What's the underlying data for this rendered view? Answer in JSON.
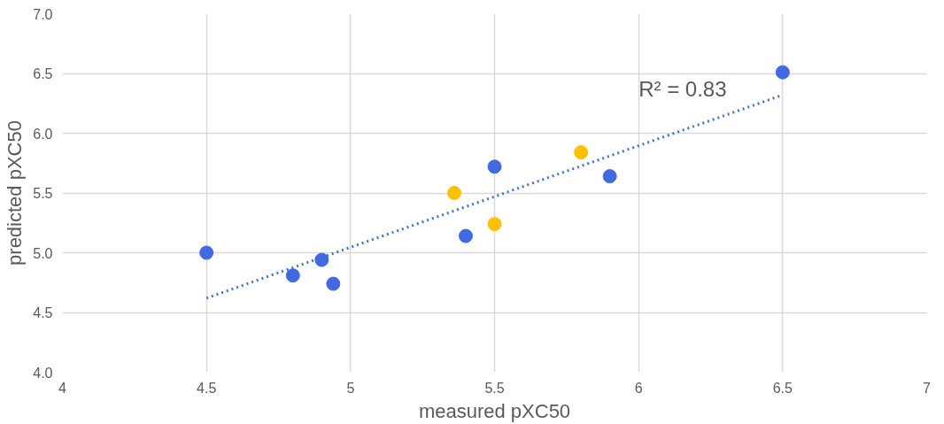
{
  "chart_data": {
    "type": "scatter",
    "xlabel": "measured pXC50",
    "ylabel": "predicted pXC50",
    "xlim": [
      4,
      7
    ],
    "ylim": [
      4,
      7
    ],
    "xticks": [
      4,
      4.5,
      5,
      5.5,
      6,
      6.5,
      7
    ],
    "yticks": [
      {
        "value": 4,
        "label": "4.0"
      },
      4.5,
      {
        "value": 5,
        "label": "5.0"
      },
      5.5,
      {
        "value": 6,
        "label": "6.0"
      },
      6.5,
      {
        "value": 7,
        "label": "7.0"
      }
    ],
    "grid": true,
    "marker": "circle",
    "series": [
      {
        "color": "#4169e1",
        "x": [
          4.5,
          4.8,
          4.9,
          4.94,
          5.4,
          5.5,
          5.9,
          6.5
        ],
        "values": [
          5.0,
          4.81,
          4.94,
          4.74,
          5.14,
          5.72,
          5.64,
          6.51
        ]
      },
      {
        "color": "#ffc000",
        "x": [
          5.36,
          5.5,
          5.8
        ],
        "values": [
          5.5,
          5.24,
          5.84
        ]
      },
      {
        "type": "line",
        "color": "#4472c4",
        "line_style": "dotted",
        "marker": "none",
        "x": [
          4.5,
          6.5
        ],
        "values": [
          4.62,
          6.32
        ]
      }
    ],
    "annotations": [
      "R² = 0.83"
    ]
  }
}
